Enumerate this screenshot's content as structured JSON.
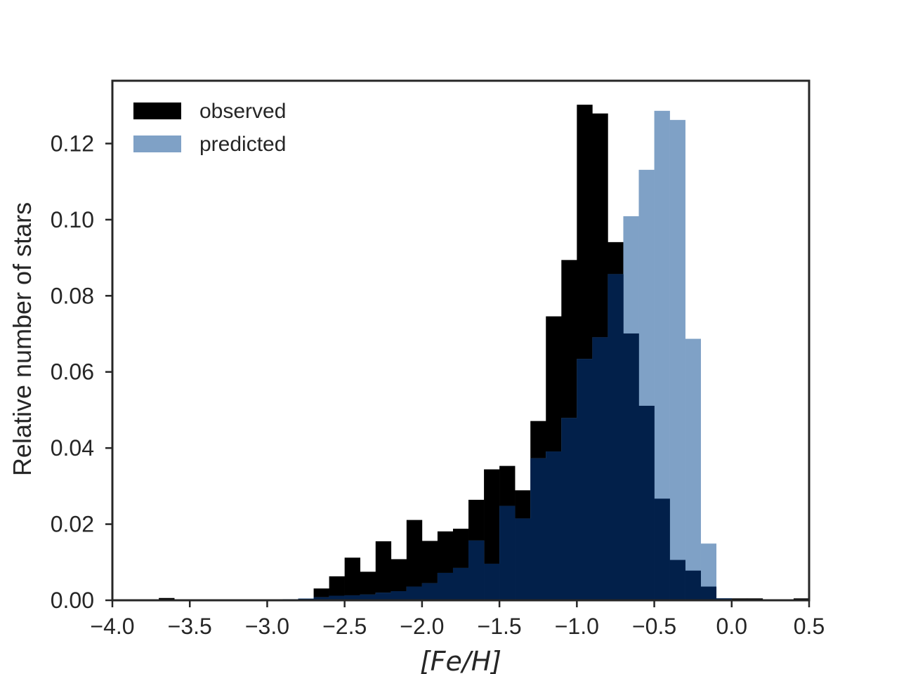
{
  "chart_data": {
    "type": "bar",
    "xlabel": "[Fe/H]",
    "ylabel": "Relative number of stars",
    "xlim": [
      -4.0,
      0.5
    ],
    "ylim": [
      0.0,
      0.1365
    ],
    "x_ticks": [
      -4.0,
      -3.5,
      -3.0,
      -2.5,
      -2.0,
      -1.5,
      -1.0,
      -0.5,
      0.0,
      0.5
    ],
    "x_tick_labels": [
      "−4.0",
      "−3.5",
      "−3.0",
      "−2.5",
      "−2.0",
      "−1.5",
      "−1.0",
      "−0.5",
      "0.0",
      "0.5"
    ],
    "y_ticks": [
      0.0,
      0.02,
      0.04,
      0.06,
      0.08,
      0.1,
      0.12
    ],
    "y_tick_labels": [
      "0.00",
      "0.02",
      "0.04",
      "0.06",
      "0.08",
      "0.10",
      "0.12"
    ],
    "grid": false,
    "legend_position": "top-left",
    "bin_edges": [
      -4.0,
      -3.9,
      -3.8,
      -3.7,
      -3.6,
      -3.5,
      -3.4,
      -3.3,
      -3.2,
      -3.1,
      -3.0,
      -2.9,
      -2.8,
      -2.7,
      -2.6,
      -2.5,
      -2.4,
      -2.3,
      -2.2,
      -2.1,
      -2.0,
      -1.9,
      -1.8,
      -1.7,
      -1.6,
      -1.5,
      -1.4,
      -1.3,
      -1.2,
      -1.1,
      -1.0,
      -0.9,
      -0.8,
      -0.7,
      -0.6,
      -0.5,
      -0.4,
      -0.3,
      -0.2,
      -0.1,
      0.0,
      0.1,
      0.2,
      0.3,
      0.4,
      0.5
    ],
    "series": [
      {
        "name": "observed",
        "color": "#000000",
        "values": [
          0,
          0,
          0,
          0.0006,
          0,
          0,
          0,
          0,
          0,
          0,
          0,
          0,
          0.0004,
          0.0031,
          0.0063,
          0.0112,
          0.0075,
          0.0155,
          0.0108,
          0.0211,
          0.0156,
          0.0181,
          0.0188,
          0.0264,
          0.0344,
          0.0353,
          0.0289,
          0.0471,
          0.0746,
          0.0894,
          0.1302,
          0.1279,
          0.0941,
          0.0701,
          0.0511,
          0.0267,
          0.0106,
          0.0078,
          0.0036,
          0.0005,
          0.0005,
          0.0005,
          0,
          0,
          0.0005
        ]
      },
      {
        "name": "predicted",
        "color": "#7fa1c6",
        "values": [
          0,
          0,
          0,
          0,
          0,
          0,
          0,
          0,
          0,
          0,
          0,
          0.0003,
          0.0005,
          0.0008,
          0.0012,
          0.0013,
          0.0015,
          0.002,
          0.0024,
          0.0036,
          0.0045,
          0.0072,
          0.0085,
          0.0157,
          0.0096,
          0.0248,
          0.0215,
          0.0373,
          0.0391,
          0.0479,
          0.0634,
          0.0691,
          0.0857,
          0.1009,
          0.1131,
          0.1286,
          0.1262,
          0.0687,
          0.0149,
          0.0005,
          0,
          0,
          0,
          0,
          0
        ]
      }
    ],
    "overlap_color": "#02204a"
  }
}
